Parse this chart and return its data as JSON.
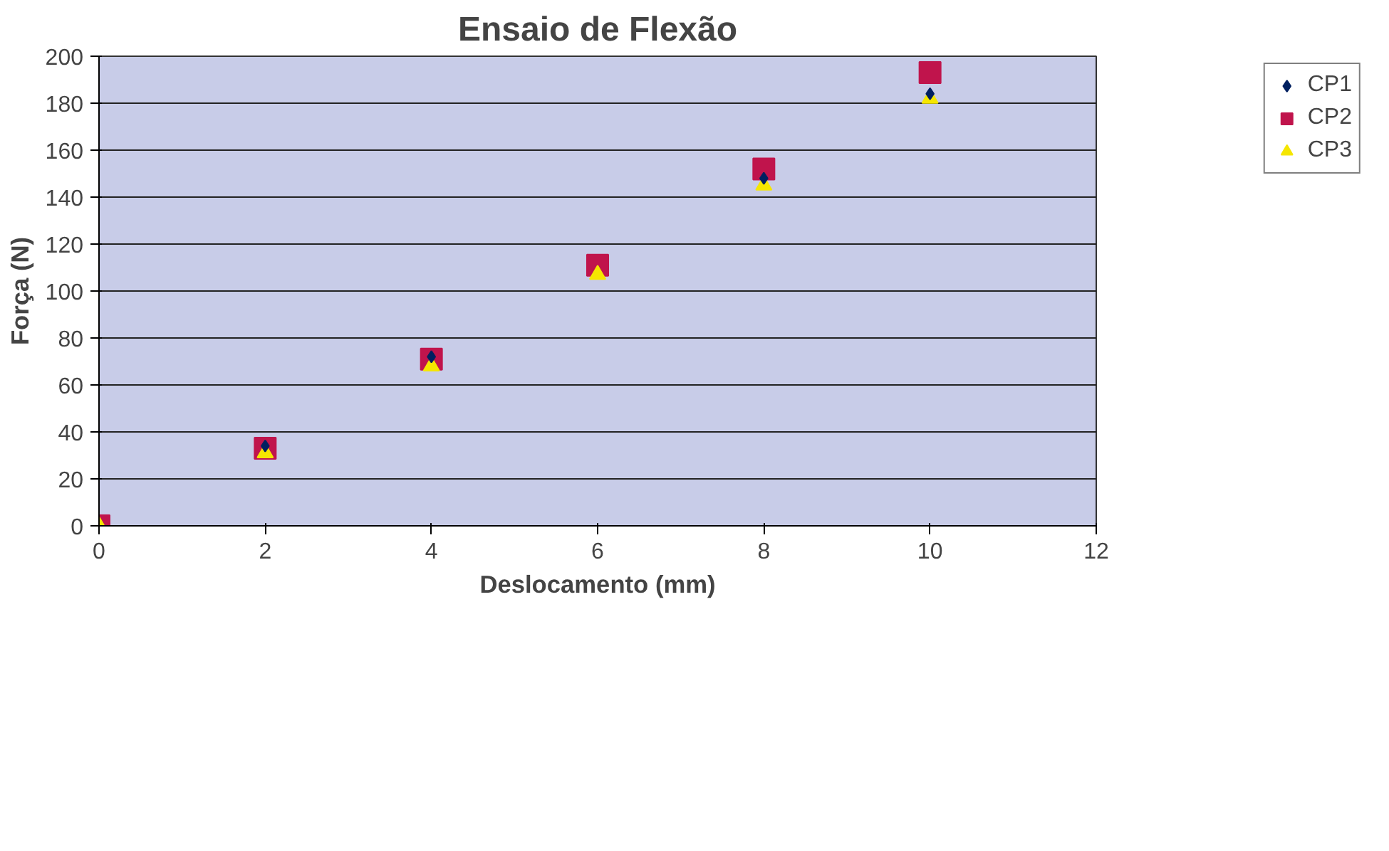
{
  "chart_data": {
    "type": "scatter",
    "title": "Ensaio de Flexão",
    "xlabel": "Deslocamento (mm)",
    "ylabel": "Força (N)",
    "x": [
      0,
      2,
      4,
      6,
      8,
      10
    ],
    "series": [
      {
        "name": "CP1",
        "color": "#002060",
        "marker": "diamond",
        "values": [
          null,
          34,
          72,
          null,
          148,
          184
        ]
      },
      {
        "name": "CP2",
        "color": "#c0144c",
        "marker": "square",
        "values": [
          0,
          33,
          71,
          111,
          152,
          193
        ]
      },
      {
        "name": "CP3",
        "color": "#f5e600",
        "marker": "triangle",
        "values": [
          0,
          31,
          68,
          107,
          145,
          182
        ]
      }
    ],
    "xlim": [
      0,
      12
    ],
    "xticks": [
      0,
      2,
      4,
      6,
      8,
      10,
      12
    ],
    "ylim": [
      0,
      200
    ],
    "yticks": [
      0,
      20,
      40,
      60,
      80,
      100,
      120,
      140,
      160,
      180,
      200
    ],
    "grid": "y",
    "legend": "right"
  }
}
